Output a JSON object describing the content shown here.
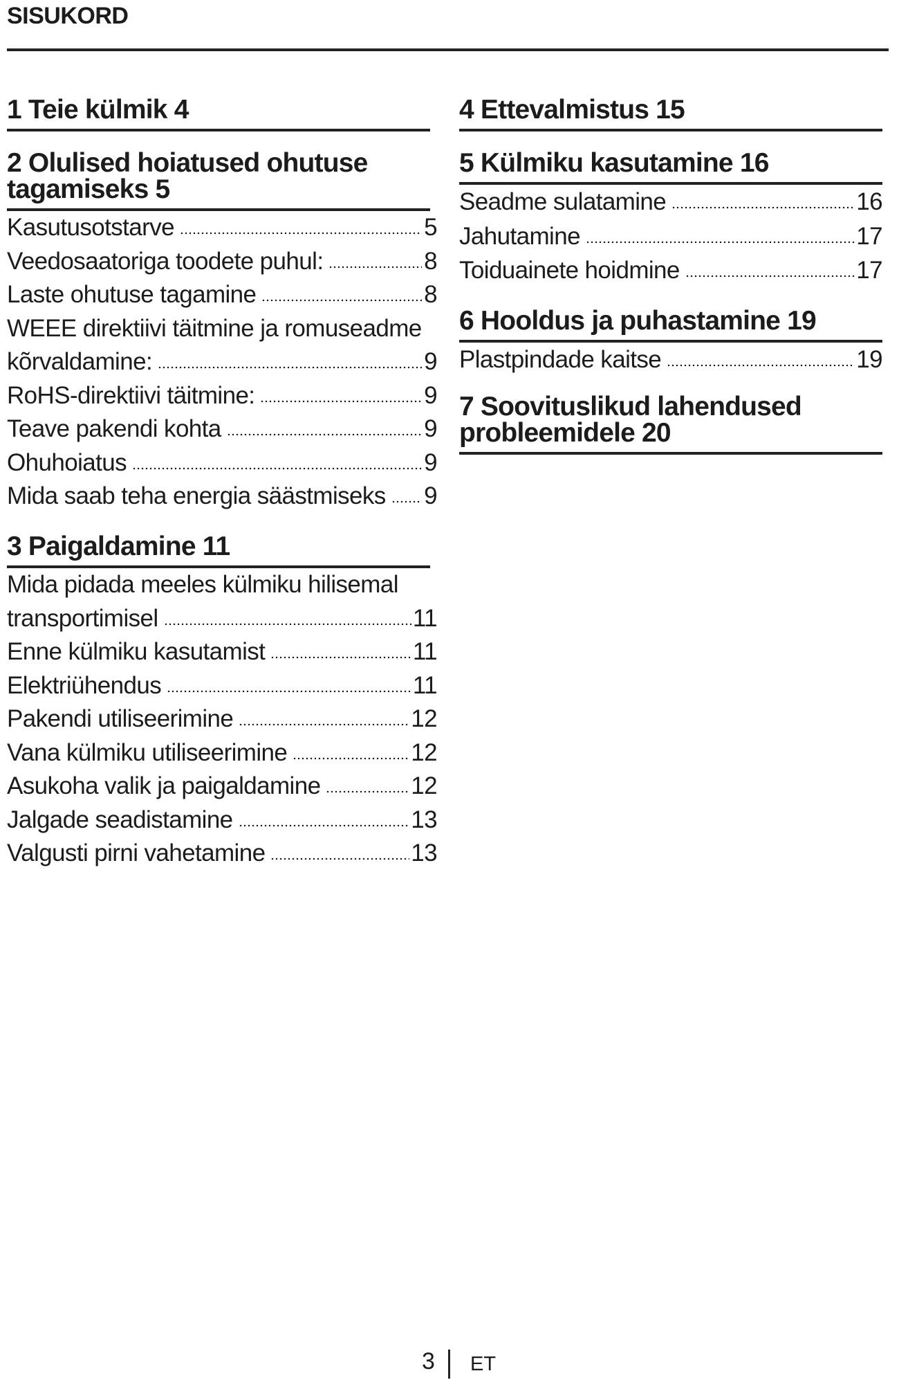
{
  "header": {
    "title": "SISUKORD"
  },
  "left": [
    {
      "heading": [
        "1  Teie külmik   4"
      ],
      "entries": []
    },
    {
      "heading": [
        "2 Olulised hoiatused ohutuse",
        "tagamiseks 5"
      ],
      "entries": [
        {
          "lines": [
            "Kasutusotstarve"
          ],
          "page": "5"
        },
        {
          "lines": [
            "Veedosaatoriga toodete puhul:"
          ],
          "page": "8"
        },
        {
          "lines": [
            "Laste ohutuse tagamine"
          ],
          "page": "8"
        },
        {
          "lines": [
            "WEEE direktiivi täitmine ja romuseadme",
            "kõrvaldamine:"
          ],
          "page": "9"
        },
        {
          "lines": [
            "RoHS-direktiivi täitmine:"
          ],
          "page": "9"
        },
        {
          "lines": [
            "Teave pakendi kohta"
          ],
          "page": "9"
        },
        {
          "lines": [
            "Ohuhoiatus"
          ],
          "page": "9"
        },
        {
          "lines": [
            "Mida saab teha energia säästmiseks"
          ],
          "page": "9"
        }
      ]
    },
    {
      "heading": [
        "3  Paigaldamine  11"
      ],
      "entries": [
        {
          "lines": [
            "Mida pidada meeles külmiku hilisemal",
            "transportimisel"
          ],
          "page": "11"
        },
        {
          "lines": [
            "Enne külmiku kasutamist"
          ],
          "page": "11"
        },
        {
          "lines": [
            "Elektriühendus"
          ],
          "page": "11"
        },
        {
          "lines": [
            "Pakendi utiliseerimine"
          ],
          "page": "12"
        },
        {
          "lines": [
            "Vana külmiku utiliseerimine"
          ],
          "page": "12"
        },
        {
          "lines": [
            "Asukoha valik ja paigaldamine"
          ],
          "page": "12"
        },
        {
          "lines": [
            "Jalgade seadistamine"
          ],
          "page": "13"
        },
        {
          "lines": [
            "Valgusti pirni vahetamine"
          ],
          "page": "13"
        }
      ]
    }
  ],
  "right": [
    {
      "heading": [
        "4  Ettevalmistus  15"
      ],
      "entries": []
    },
    {
      "heading": [
        "5  Külmiku kasutamine    16"
      ],
      "entries": [
        {
          "lines": [
            "Seadme sulatamine"
          ],
          "page": "16"
        },
        {
          "lines": [
            "Jahutamine"
          ],
          "page": "17"
        },
        {
          "lines": [
            "Toiduainete hoidmine"
          ],
          "page": "17"
        }
      ]
    },
    {
      "heading": [
        "6  Hooldus ja puhastamine  19"
      ],
      "entries": [
        {
          "lines": [
            "Plastpindade kaitse"
          ],
          "page": "19"
        }
      ]
    },
    {
      "heading": [
        "7  Soovituslikud lahendused",
        "probleemidele  20"
      ],
      "entries": []
    }
  ],
  "footer": {
    "page_number": "3",
    "language": "ET"
  }
}
